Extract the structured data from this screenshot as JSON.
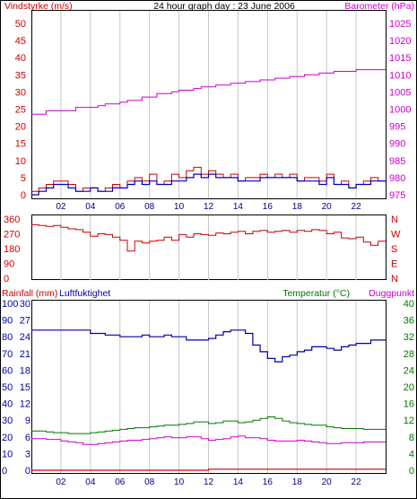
{
  "header": {
    "title": "24 hour graph day : 23 June 2006",
    "left_label": "Vindstyrke (m/s)",
    "right_label": "Barometer (hPa)"
  },
  "colors": {
    "background": "#ffffff",
    "frame": "#000000",
    "grid": "#c8c8c8",
    "wind_avg": "#0000cc",
    "wind_gust": "#cc0000",
    "barometer": "#cc00cc",
    "direction": "#cc0000",
    "humidity": "#0000aa",
    "temperature": "#007700",
    "dewpoint": "#cc00cc",
    "rainfall": "#cc0000"
  },
  "time_ticks": [
    "02",
    "04",
    "06",
    "08",
    "10",
    "12",
    "14",
    "16",
    "18",
    "20",
    "22"
  ],
  "chart_data": [
    {
      "type": "line",
      "x_hours": [
        0,
        0.5,
        1,
        1.5,
        2,
        2.5,
        3,
        3.5,
        4,
        4.5,
        5,
        5.5,
        6,
        6.5,
        7,
        7.5,
        8,
        8.5,
        9,
        9.5,
        10,
        10.5,
        11,
        11.5,
        12,
        12.5,
        13,
        13.5,
        14,
        14.5,
        15,
        15.5,
        16,
        16.5,
        17,
        17.5,
        18,
        18.5,
        19,
        19.5,
        20,
        20.5,
        21,
        21.5,
        22,
        22.5,
        23,
        23.5
      ],
      "left_axis": {
        "label": "Vindstyrke (m/s)",
        "range": [
          0,
          50
        ],
        "ticks": [
          "0",
          "5",
          "10",
          "15",
          "20",
          "25",
          "30",
          "35",
          "40",
          "45",
          "50"
        ]
      },
      "right_axis": {
        "label": "Barometer (hPa)",
        "range": [
          975,
          1025
        ],
        "ticks": [
          "975",
          "980",
          "985",
          "990",
          "995",
          "1000",
          "1005",
          "1010",
          "1015",
          "1020",
          "1025"
        ]
      },
      "series": [
        {
          "axis": "left",
          "color_key": "wind_gust",
          "values": [
            1,
            2,
            3,
            4,
            4,
            3,
            1,
            2,
            2,
            1,
            2,
            3,
            2,
            4,
            5,
            4,
            6,
            3,
            4,
            6,
            5,
            7,
            8,
            6,
            7,
            6,
            5,
            6,
            4,
            5,
            5,
            6,
            5,
            6,
            5,
            6,
            4,
            5,
            5,
            4,
            6,
            3,
            4,
            2,
            3,
            4,
            5,
            4
          ]
        },
        {
          "axis": "left",
          "color_key": "wind_avg",
          "values": [
            0,
            1,
            2,
            3,
            3,
            2,
            1,
            1,
            2,
            1,
            1,
            2,
            2,
            3,
            4,
            3,
            4,
            3,
            3,
            4,
            4,
            5,
            6,
            5,
            6,
            5,
            5,
            5,
            4,
            4,
            4,
            5,
            5,
            5,
            5,
            5,
            4,
            4,
            4,
            3,
            5,
            3,
            3,
            2,
            3,
            3,
            4,
            4
          ]
        },
        {
          "axis": "right",
          "color_key": "barometer",
          "values": [
            998.5,
            998.5,
            999.5,
            999.5,
            999.5,
            999.5,
            1000.5,
            1000.5,
            1000.5,
            1001,
            1001.5,
            1001.5,
            1002,
            1002.5,
            1002.5,
            1003.5,
            1003.5,
            1004.5,
            1004.5,
            1005,
            1005.5,
            1005.5,
            1006,
            1006.5,
            1006.5,
            1007,
            1007,
            1007.5,
            1007.5,
            1008,
            1008,
            1008.5,
            1008.5,
            1009,
            1009,
            1009.5,
            1009.5,
            1010,
            1010,
            1010.5,
            1010.5,
            1011,
            1011,
            1011,
            1011.5,
            1011.5,
            1011.5,
            1011.5
          ]
        }
      ]
    },
    {
      "type": "line",
      "x_hours": [
        0,
        0.5,
        1,
        1.5,
        2,
        2.5,
        3,
        3.5,
        4,
        4.5,
        5,
        5.5,
        6,
        6.5,
        7,
        7.5,
        8,
        8.5,
        9,
        9.5,
        10,
        10.5,
        11,
        11.5,
        12,
        12.5,
        13,
        13.5,
        14,
        14.5,
        15,
        15.5,
        16,
        16.5,
        17,
        17.5,
        18,
        18.5,
        19,
        19.5,
        20,
        20.5,
        21,
        21.5,
        22,
        22.5,
        23,
        23.5
      ],
      "left_axis": {
        "range": [
          0,
          360
        ],
        "ticks": [
          "0",
          "90",
          "180",
          "270",
          "360"
        ]
      },
      "right_axis": {
        "ticks": [
          "N",
          "E",
          "S",
          "W",
          "N"
        ]
      },
      "series": [
        {
          "axis": "left",
          "color_key": "direction",
          "values": [
            325,
            320,
            315,
            320,
            310,
            300,
            295,
            280,
            255,
            270,
            265,
            250,
            230,
            165,
            225,
            215,
            225,
            230,
            250,
            230,
            265,
            250,
            270,
            265,
            260,
            275,
            270,
            280,
            285,
            270,
            285,
            290,
            280,
            285,
            290,
            280,
            290,
            285,
            295,
            290,
            270,
            280,
            245,
            240,
            250,
            220,
            200,
            225
          ]
        }
      ]
    },
    {
      "type": "line",
      "x_hours": [
        0,
        0.5,
        1,
        1.5,
        2,
        2.5,
        3,
        3.5,
        4,
        4.5,
        5,
        5.5,
        6,
        6.5,
        7,
        7.5,
        8,
        8.5,
        9,
        9.5,
        10,
        10.5,
        11,
        11.5,
        12,
        12.5,
        13,
        13.5,
        14,
        14.5,
        15,
        15.5,
        16,
        16.5,
        17,
        17.5,
        18,
        18.5,
        19,
        19.5,
        20,
        20.5,
        21,
        21.5,
        22,
        22.5,
        23,
        23.5
      ],
      "left_labels": [
        "Rainfall (mm)",
        "Luftfuktighet"
      ],
      "right_labels": [
        "Temperatur (°C)",
        "Duggpunkt"
      ],
      "humidity_axis": {
        "range": [
          0,
          100
        ],
        "ticks": [
          "0",
          "10",
          "20",
          "30",
          "40",
          "50",
          "60",
          "70",
          "80",
          "90",
          "100"
        ]
      },
      "rain_axis": {
        "range": [
          0,
          30
        ],
        "ticks": [
          "0",
          "3",
          "6",
          "9",
          "12",
          "15",
          "18",
          "21",
          "24",
          "27",
          "30"
        ]
      },
      "temperature_axis": {
        "range": [
          0,
          40
        ],
        "ticks": [
          "0",
          "4",
          "8",
          "12",
          "16",
          "20",
          "24",
          "28",
          "32",
          "36",
          "40"
        ]
      },
      "series": [
        {
          "axis": "humidity",
          "color_key": "humidity",
          "values": [
            84,
            84,
            84,
            84,
            84,
            84,
            84,
            84,
            82,
            82,
            81,
            81,
            80,
            80,
            80,
            81,
            80,
            80,
            81,
            80,
            80,
            78,
            78,
            78,
            79,
            81,
            83,
            84,
            84,
            82,
            75,
            71,
            67,
            65,
            68,
            69,
            71,
            72,
            74,
            74,
            73,
            72,
            74,
            75,
            76,
            76,
            78,
            78
          ]
        },
        {
          "axis": "temperature",
          "color_key": "temperature",
          "values": [
            9.4,
            9.4,
            9.2,
            9,
            9,
            8.8,
            8.8,
            8.8,
            9,
            9.2,
            9.4,
            9.6,
            9.8,
            10,
            10.2,
            10.2,
            10.4,
            10.6,
            10.8,
            10.8,
            11,
            11.2,
            11.6,
            11.6,
            11.2,
            11.4,
            11.8,
            11.8,
            11.4,
            11.6,
            12,
            12.4,
            12.8,
            12.4,
            11.8,
            11.4,
            11.2,
            11,
            10.8,
            10.8,
            10.4,
            10.2,
            10,
            10,
            10,
            9.8,
            9.8,
            9.8
          ]
        },
        {
          "axis": "temperature",
          "color_key": "dewpoint",
          "values": [
            7.6,
            7.6,
            7.4,
            7.4,
            7,
            6.8,
            6.6,
            6.2,
            6.2,
            6.4,
            6.6,
            6.8,
            7,
            7.2,
            7.2,
            7.4,
            7.6,
            7.8,
            8,
            7.8,
            7.8,
            8,
            8,
            7.6,
            7.2,
            7.4,
            7.6,
            8,
            8.2,
            7.8,
            7.8,
            7.6,
            7.2,
            7,
            7,
            7,
            7.2,
            7,
            6.8,
            6.6,
            6.4,
            6.4,
            6.6,
            6.6,
            6.6,
            6.8,
            6.8,
            6.8
          ]
        },
        {
          "axis": "rain",
          "color_key": "rainfall",
          "values": [
            0,
            0,
            0,
            0,
            0,
            0,
            0,
            0,
            0,
            0,
            0,
            0,
            0,
            0,
            0,
            0,
            0,
            0,
            0,
            0,
            0,
            0,
            0,
            0,
            0.2,
            0.2,
            0.2,
            0.2,
            0.2,
            0.2,
            0.2,
            0.2,
            0.2,
            0.2,
            0.2,
            0.2,
            0.2,
            0.2,
            0.2,
            0.2,
            0.2,
            0.2,
            0.2,
            0.2,
            0.2,
            0.2,
            0.2,
            0.2
          ]
        }
      ]
    }
  ]
}
